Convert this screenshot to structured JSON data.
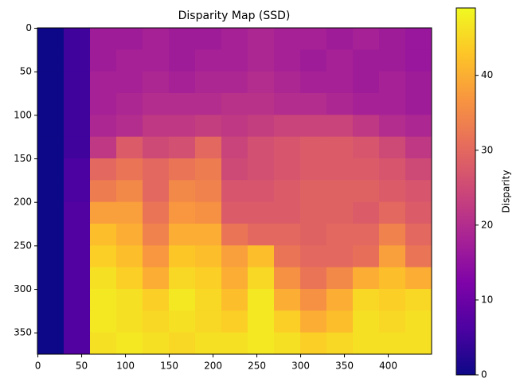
{
  "chart_data": {
    "type": "heatmap",
    "title": "Disparity Map (SSD)",
    "colormap": "plasma",
    "colorbar_label": "Disparity",
    "xlim": [
      -0.5,
      449.5
    ],
    "ylim": [
      374.5,
      -0.5
    ],
    "xticks": [
      0,
      50,
      100,
      150,
      200,
      250,
      300,
      350,
      400
    ],
    "yticks": [
      0,
      50,
      100,
      150,
      200,
      250,
      300,
      350
    ],
    "clim": [
      0,
      49
    ],
    "cticks": [
      0,
      10,
      20,
      30,
      40
    ],
    "z": [
      [
        0,
        5,
        17,
        17,
        18,
        17,
        17,
        18,
        19,
        18,
        18,
        17,
        18,
        17,
        16
      ],
      [
        0,
        5,
        17,
        18,
        18,
        17,
        18,
        18,
        19,
        18,
        17,
        18,
        17,
        17,
        16
      ],
      [
        0,
        5,
        18,
        18,
        19,
        18,
        19,
        19,
        20,
        19,
        18,
        18,
        17,
        18,
        17
      ],
      [
        0,
        5,
        18,
        19,
        20,
        20,
        20,
        21,
        21,
        20,
        20,
        19,
        18,
        18,
        17
      ],
      [
        0,
        5,
        19,
        20,
        22,
        22,
        23,
        22,
        23,
        24,
        24,
        24,
        22,
        20,
        19
      ],
      [
        0,
        5,
        22,
        28,
        25,
        26,
        30,
        24,
        26,
        27,
        28,
        28,
        27,
        25,
        22
      ],
      [
        0,
        6,
        30,
        32,
        30,
        32,
        33,
        25,
        26,
        27,
        28,
        28,
        28,
        27,
        25
      ],
      [
        0,
        6,
        33,
        35,
        30,
        35,
        34,
        27,
        27,
        28,
        29,
        29,
        29,
        28,
        27
      ],
      [
        0,
        7,
        38,
        38,
        32,
        37,
        36,
        28,
        28,
        28,
        29,
        29,
        28,
        30,
        28
      ],
      [
        0,
        7,
        42,
        40,
        34,
        40,
        40,
        32,
        30,
        30,
        29,
        30,
        30,
        34,
        30
      ],
      [
        0,
        7,
        44,
        42,
        37,
        43,
        42,
        38,
        42,
        32,
        30,
        30,
        31,
        38,
        32
      ],
      [
        0,
        7,
        46,
        44,
        40,
        45,
        44,
        40,
        45,
        36,
        32,
        35,
        40,
        42,
        40
      ],
      [
        0,
        7,
        47,
        46,
        44,
        47,
        45,
        42,
        47,
        40,
        36,
        40,
        45,
        44,
        45
      ],
      [
        0,
        7,
        47,
        46,
        45,
        46,
        45,
        44,
        47,
        44,
        40,
        42,
        46,
        45,
        46
      ],
      [
        0,
        7,
        46,
        47,
        46,
        45,
        46,
        46,
        47,
        46,
        44,
        45,
        46,
        46,
        46
      ]
    ]
  }
}
